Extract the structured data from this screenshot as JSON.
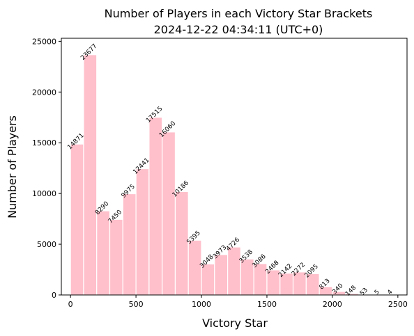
{
  "chart_data": {
    "type": "bar",
    "title_line1": "Number of Players in each Victory Star Brackets",
    "title_line2": "2024-12-22 04:34:11 (UTC+0)",
    "xlabel": "Victory Star",
    "ylabel": "Number of Players",
    "bin_width": 100,
    "bins_start": [
      0,
      100,
      200,
      300,
      400,
      500,
      600,
      700,
      800,
      900,
      1000,
      1100,
      1200,
      1300,
      1400,
      1500,
      1600,
      1700,
      1800,
      1900,
      2000,
      2100,
      2200,
      2300,
      2400
    ],
    "values": [
      14871,
      23677,
      8290,
      7450,
      9975,
      12441,
      17515,
      16060,
      10186,
      5395,
      3048,
      3973,
      4726,
      3538,
      3086,
      2468,
      2142,
      2272,
      2095,
      813,
      340,
      148,
      53,
      5,
      4
    ],
    "data_labels": [
      "14871",
      "23677",
      "8290",
      "7450",
      "9975",
      "12441",
      "17515",
      "16060",
      "10186",
      "5395",
      "3048",
      "3973",
      "4726",
      "3538",
      "3086",
      "2468",
      "2142",
      "2272",
      "2095",
      "813",
      "340",
      "148",
      "53",
      "5",
      "4"
    ],
    "xlim": [
      -70,
      2570
    ],
    "ylim": [
      0,
      25300
    ],
    "x_ticks": [
      0,
      500,
      1000,
      1500,
      2000,
      2500
    ],
    "x_tick_labels": [
      "0",
      "500",
      "1000",
      "1500",
      "2000",
      "2500"
    ],
    "y_ticks": [
      0,
      5000,
      10000,
      15000,
      20000,
      25000
    ],
    "y_tick_labels": [
      "0",
      "5000",
      "10000",
      "15000",
      "20000",
      "25000"
    ],
    "grid": false,
    "legend": "none",
    "colors": {
      "bar": "#ffc0cb",
      "bar_edge": "#ffffff",
      "axis": "#000000"
    }
  }
}
